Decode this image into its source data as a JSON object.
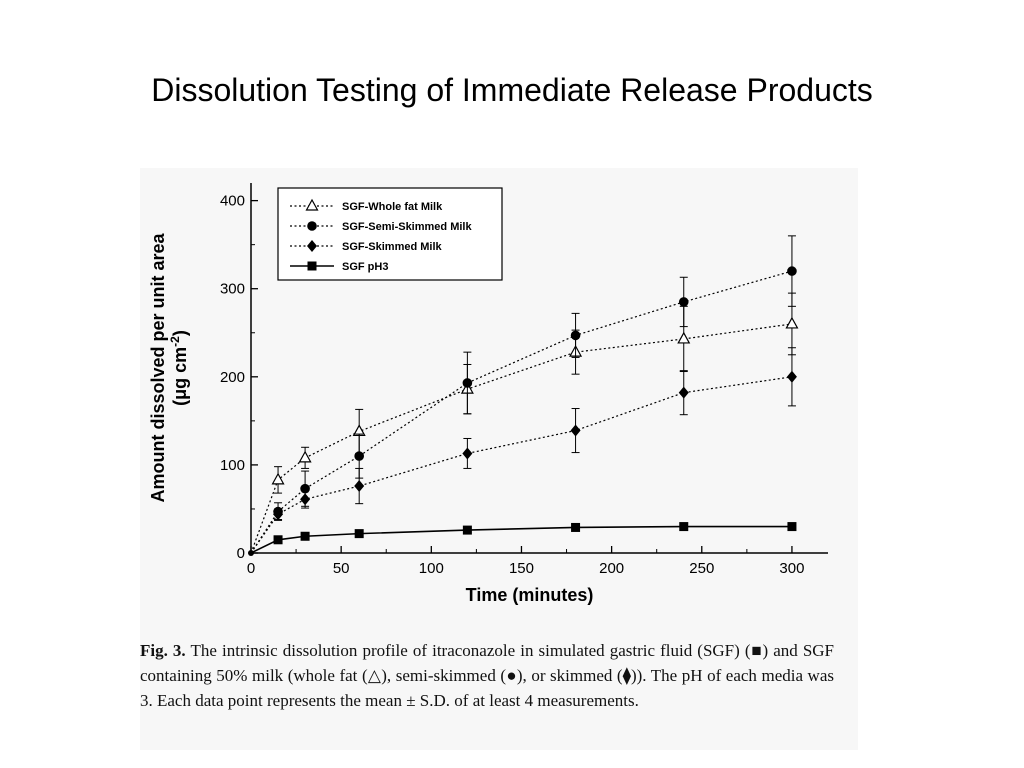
{
  "slide": {
    "title": "Dissolution Testing of Immediate Release Products"
  },
  "caption": {
    "label": "Fig. 3.",
    "text": "The intrinsic dissolution profile of itraconazole in simulated gastric fluid (SGF) (■) and SGF containing 50% milk (whole fat (△), semi-skimmed (●), or skimmed (⧫)). The pH of each media was 3. Each data point represents the mean ± S.D. of at least 4 measurements."
  },
  "chart_data": {
    "type": "line",
    "xlabel": "Time (minutes)",
    "ylabel_line1": "Amount dissolved per unit area",
    "ylabel_unit_base": "(μg cm",
    "ylabel_unit_sup": "-2",
    "ylabel_unit_close": ")",
    "xlim": [
      0,
      320
    ],
    "ylim": [
      0,
      420
    ],
    "x_ticks": [
      0,
      50,
      100,
      150,
      200,
      250,
      300
    ],
    "y_ticks": [
      0,
      100,
      200,
      300,
      400
    ],
    "grid": false,
    "legend_position": "top-left",
    "series": [
      {
        "name": "SGF-Whole fat Milk",
        "marker": "triangle-open",
        "line_style": "dotted",
        "points": [
          {
            "x": 0,
            "y": 0,
            "err": 0
          },
          {
            "x": 15,
            "y": 83,
            "err": 15
          },
          {
            "x": 30,
            "y": 108,
            "err": 12
          },
          {
            "x": 60,
            "y": 138,
            "err": 25
          },
          {
            "x": 120,
            "y": 186,
            "err": 28
          },
          {
            "x": 180,
            "y": 228,
            "err": 25
          },
          {
            "x": 240,
            "y": 243,
            "err": 37
          },
          {
            "x": 300,
            "y": 260,
            "err": 35
          }
        ]
      },
      {
        "name": "SGF-Semi-Skimmed Milk",
        "marker": "circle-filled",
        "line_style": "dotted",
        "points": [
          {
            "x": 0,
            "y": 0,
            "err": 0
          },
          {
            "x": 15,
            "y": 47,
            "err": 10
          },
          {
            "x": 30,
            "y": 73,
            "err": 20
          },
          {
            "x": 60,
            "y": 110,
            "err": 25
          },
          {
            "x": 120,
            "y": 193,
            "err": 35
          },
          {
            "x": 180,
            "y": 247,
            "err": 25
          },
          {
            "x": 240,
            "y": 285,
            "err": 28
          },
          {
            "x": 300,
            "y": 320,
            "err": 40
          }
        ]
      },
      {
        "name": "SGF-Skimmed Milk",
        "marker": "diamond-filled",
        "line_style": "dotted",
        "points": [
          {
            "x": 0,
            "y": 0,
            "err": 0
          },
          {
            "x": 15,
            "y": 44,
            "err": 6
          },
          {
            "x": 30,
            "y": 61,
            "err": 10
          },
          {
            "x": 60,
            "y": 76,
            "err": 20
          },
          {
            "x": 120,
            "y": 113,
            "err": 17
          },
          {
            "x": 180,
            "y": 139,
            "err": 25
          },
          {
            "x": 240,
            "y": 182,
            "err": 25
          },
          {
            "x": 300,
            "y": 200,
            "err": 33
          }
        ]
      },
      {
        "name": "SGF pH3",
        "marker": "square-filled",
        "line_style": "solid",
        "points": [
          {
            "x": 0,
            "y": 0,
            "err": 0
          },
          {
            "x": 15,
            "y": 15,
            "err": 1
          },
          {
            "x": 30,
            "y": 19,
            "err": 1
          },
          {
            "x": 60,
            "y": 22,
            "err": 1
          },
          {
            "x": 120,
            "y": 26,
            "err": 2
          },
          {
            "x": 180,
            "y": 29,
            "err": 2
          },
          {
            "x": 240,
            "y": 30,
            "err": 2
          },
          {
            "x": 300,
            "y": 30,
            "err": 2
          }
        ]
      }
    ]
  }
}
